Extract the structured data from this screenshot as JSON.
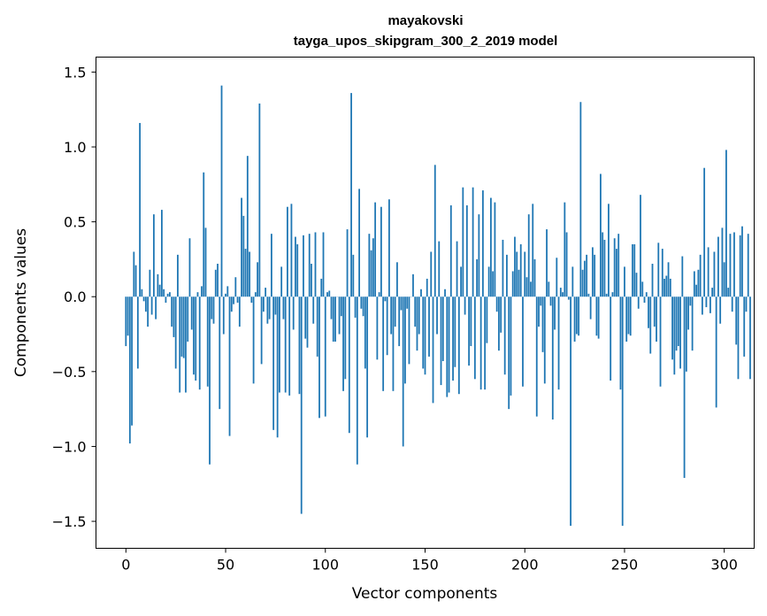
{
  "chart_data": {
    "type": "bar",
    "title": "mayakovski",
    "subtitle": "tayga_upos_skipgram_300_2_2019 model",
    "xlabel": "Vector components",
    "ylabel": "Components values",
    "xlim": [
      -15,
      315
    ],
    "ylim": [
      -1.68,
      1.6
    ],
    "xticks": [
      0,
      50,
      100,
      150,
      200,
      250,
      300
    ],
    "xtick_labels": [
      "0",
      "50",
      "100",
      "150",
      "200",
      "250",
      "300"
    ],
    "yticks": [
      -1.5,
      -1.0,
      -0.5,
      0.0,
      0.5,
      1.0,
      1.5
    ],
    "ytick_labels": [
      "−1.5",
      "−1.0",
      "−0.5",
      "0.0",
      "0.5",
      "1.0",
      "1.5"
    ],
    "bar_color": "#1f77b4",
    "grid": false,
    "legend": "none",
    "values": [
      -0.33,
      -0.26,
      -0.98,
      -0.86,
      0.3,
      0.21,
      -0.48,
      1.16,
      0.05,
      -0.03,
      -0.1,
      -0.2,
      0.18,
      -0.12,
      0.55,
      -0.15,
      0.15,
      0.08,
      0.58,
      0.05,
      -0.04,
      0.02,
      0.03,
      -0.2,
      -0.27,
      -0.48,
      0.28,
      -0.64,
      -0.4,
      -0.41,
      -0.64,
      -0.3,
      0.39,
      -0.22,
      -0.52,
      -0.56,
      0.03,
      -0.62,
      0.07,
      0.83,
      0.46,
      -0.6,
      -1.12,
      -0.15,
      -0.18,
      0.18,
      0.22,
      -0.75,
      1.41,
      -0.25,
      0.02,
      0.07,
      -0.93,
      -0.1,
      -0.05,
      0.13,
      -0.04,
      -0.2,
      0.66,
      0.54,
      0.32,
      0.94,
      0.3,
      -0.04,
      -0.58,
      0.03,
      0.23,
      1.29,
      -0.45,
      -0.1,
      0.06,
      -0.18,
      -0.15,
      0.42,
      -0.89,
      -0.12,
      -0.94,
      -0.64,
      0.2,
      -0.15,
      -0.64,
      0.6,
      -0.66,
      0.62,
      -0.22,
      0.4,
      0.35,
      -0.65,
      -1.45,
      0.41,
      -0.28,
      -0.34,
      0.42,
      0.22,
      -0.18,
      0.43,
      -0.4,
      -0.81,
      0.12,
      0.43,
      -0.8,
      0.03,
      0.04,
      -0.15,
      -0.3,
      -0.3,
      0.0,
      -0.25,
      -0.13,
      -0.63,
      -0.55,
      0.45,
      -0.91,
      1.36,
      0.28,
      -0.14,
      -1.12,
      0.72,
      -0.08,
      -0.13,
      -0.48,
      -0.94,
      0.42,
      0.31,
      0.39,
      0.63,
      -0.42,
      0.03,
      0.6,
      -0.63,
      -0.03,
      -0.39,
      0.65,
      -0.25,
      -0.63,
      -0.2,
      0.23,
      -0.33,
      -0.09,
      -1.0,
      -0.58,
      -0.08,
      -0.45,
      0.0,
      0.15,
      -0.2,
      -0.36,
      -0.25,
      0.05,
      -0.48,
      -0.52,
      0.12,
      -0.4,
      0.3,
      -0.71,
      0.88,
      -0.25,
      0.37,
      -0.59,
      -0.43,
      0.05,
      -0.67,
      -0.64,
      0.61,
      -0.56,
      -0.47,
      0.37,
      -0.65,
      0.2,
      0.73,
      -0.12,
      0.61,
      -0.46,
      -0.33,
      0.73,
      -0.55,
      0.25,
      0.55,
      -0.62,
      0.71,
      -0.62,
      -0.31,
      0.2,
      0.66,
      0.17,
      0.63,
      -0.1,
      -0.36,
      -0.24,
      0.38,
      -0.52,
      0.28,
      -0.75,
      -0.66,
      0.17,
      0.4,
      0.3,
      0.18,
      0.35,
      -0.6,
      0.3,
      0.13,
      0.55,
      0.1,
      0.62,
      0.25,
      -0.8,
      -0.2,
      -0.06,
      -0.37,
      -0.58,
      0.45,
      0.1,
      -0.06,
      -0.82,
      -0.22,
      0.26,
      -0.62,
      0.06,
      0.03,
      0.63,
      0.43,
      -0.02,
      -1.53,
      0.2,
      -0.3,
      -0.25,
      -0.26,
      1.3,
      0.18,
      0.24,
      0.28,
      0.02,
      -0.15,
      0.33,
      0.28,
      -0.26,
      -0.28,
      0.82,
      0.43,
      0.38,
      0.02,
      0.62,
      -0.56,
      0.03,
      0.39,
      0.32,
      0.42,
      -0.62,
      -1.53,
      0.2,
      -0.3,
      -0.25,
      -0.26,
      0.35,
      0.35,
      0.16,
      -0.08,
      0.68,
      0.1,
      -0.04,
      0.03,
      -0.21,
      -0.38,
      0.22,
      -0.2,
      -0.3,
      0.36,
      -0.6,
      0.32,
      0.12,
      0.14,
      0.23,
      0.12,
      -0.42,
      -0.52,
      -0.36,
      -0.33,
      -0.48,
      0.27,
      -1.21,
      -0.5,
      -0.22,
      -0.06,
      -0.36,
      0.17,
      0.08,
      0.18,
      0.28,
      -0.12,
      0.86,
      -0.07,
      0.33,
      -0.11,
      0.06,
      0.3,
      -0.74,
      0.4,
      -0.18,
      0.46,
      0.23,
      0.98,
      0.06,
      0.42,
      -0.1,
      0.43,
      -0.32,
      -0.55,
      0.41,
      0.47,
      -0.4,
      -0.1,
      0.42,
      -0.55
    ]
  }
}
